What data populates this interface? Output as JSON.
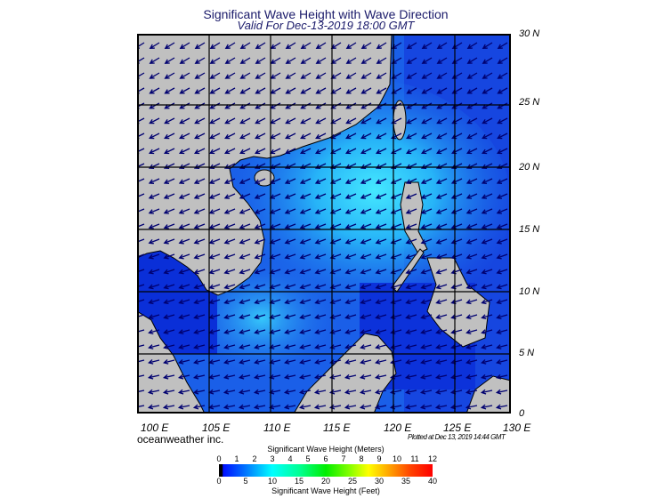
{
  "title": "Significant Wave Height with Wave Direction",
  "subtitle": "Valid For Dec-13-2019 18:00 GMT",
  "lat_labels": [
    "30 N",
    "25 N",
    "20 N",
    "15 N",
    "10 N",
    "5 N",
    "0"
  ],
  "lon_labels": [
    "100 E",
    "105 E",
    "110 E",
    "115 E",
    "120 E",
    "125 E",
    "130 E"
  ],
  "brand": "oceanweather inc.",
  "plotted": "Plotted at Dec 13, 2019 14:44 GMT",
  "colorbar": {
    "meters_title": "Significant Wave Height (Meters)",
    "meters_ticks": [
      "0",
      "1",
      "2",
      "3",
      "4",
      "5",
      "6",
      "7",
      "8",
      "9",
      "10",
      "11",
      "12"
    ],
    "feet_title": "Significant Wave Height (Feet)",
    "feet_ticks": [
      "0",
      "5",
      "10",
      "15",
      "20",
      "25",
      "30",
      "35",
      "40"
    ]
  },
  "colors": {
    "land": "#c0c0c0",
    "ocean_low": "#0a2fd8",
    "ocean_mid": "#1f74f0",
    "ocean_high": "#3fe0ff",
    "arrow": "#000070"
  },
  "wave_direction": "toward southwest"
}
